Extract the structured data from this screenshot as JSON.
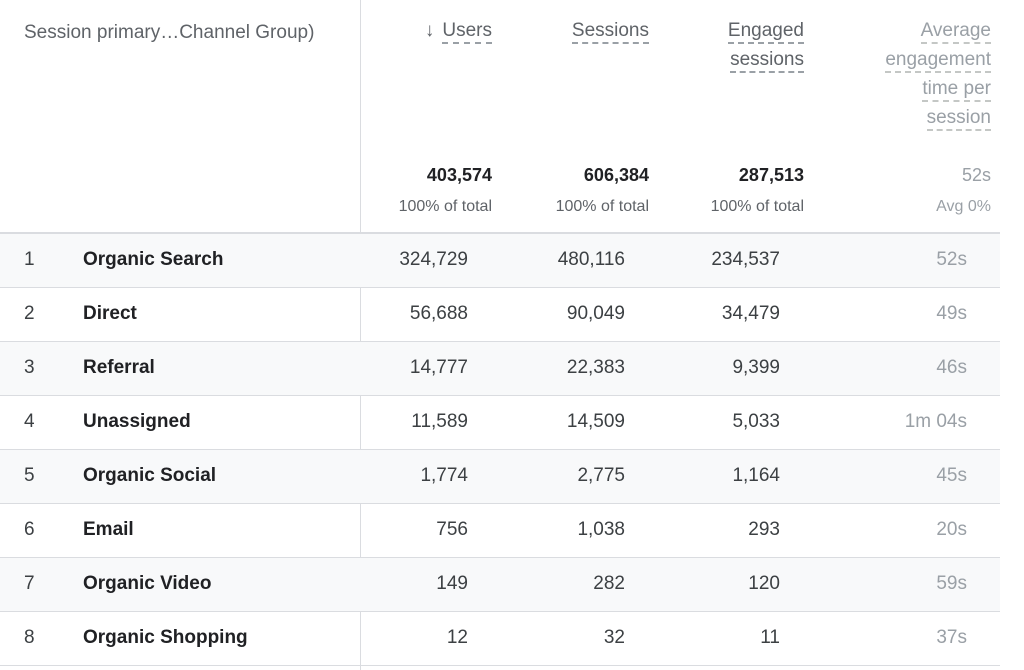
{
  "dimension_header": "Session primary…Channel Group)",
  "columns": [
    {
      "label_lines": [
        "Users"
      ],
      "sorted": "descending",
      "total": "403,574",
      "total_note": "100% of total"
    },
    {
      "label_lines": [
        "Sessions"
      ],
      "total": "606,384",
      "total_note": "100% of total"
    },
    {
      "label_lines": [
        "Engaged",
        "sessions"
      ],
      "total": "287,513",
      "total_note": "100% of total"
    },
    {
      "label_lines": [
        "Average",
        "engagement",
        "time per",
        "session"
      ],
      "total": "52s",
      "total_note": "Avg 0%"
    }
  ],
  "sort_icon": "arrow-down-icon",
  "rows": [
    {
      "index": "1",
      "channel": "Organic Search",
      "users": "324,729",
      "sessions": "480,116",
      "engaged": "234,537",
      "avg_time": "52s"
    },
    {
      "index": "2",
      "channel": "Direct",
      "users": "56,688",
      "sessions": "90,049",
      "engaged": "34,479",
      "avg_time": "49s"
    },
    {
      "index": "3",
      "channel": "Referral",
      "users": "14,777",
      "sessions": "22,383",
      "engaged": "9,399",
      "avg_time": "46s"
    },
    {
      "index": "4",
      "channel": "Unassigned",
      "users": "11,589",
      "sessions": "14,509",
      "engaged": "5,033",
      "avg_time": "1m 04s"
    },
    {
      "index": "5",
      "channel": "Organic Social",
      "users": "1,774",
      "sessions": "2,775",
      "engaged": "1,164",
      "avg_time": "45s"
    },
    {
      "index": "6",
      "channel": "Email",
      "users": "756",
      "sessions": "1,038",
      "engaged": "293",
      "avg_time": "20s"
    },
    {
      "index": "7",
      "channel": "Organic Video",
      "users": "149",
      "sessions": "282",
      "engaged": "120",
      "avg_time": "59s"
    },
    {
      "index": "8",
      "channel": "Organic Shopping",
      "users": "12",
      "sessions": "32",
      "engaged": "11",
      "avg_time": "37s"
    }
  ]
}
